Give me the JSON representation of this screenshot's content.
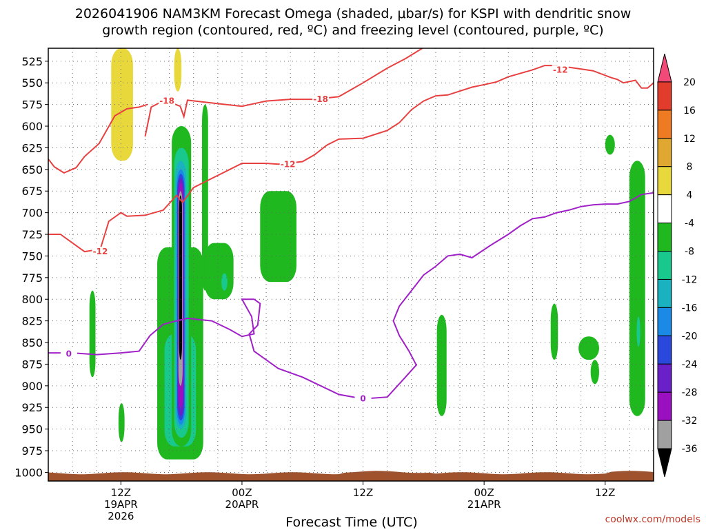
{
  "chart_data": {
    "type": "heatmap",
    "title_line1": "2026041906 NAM3KM Forecast Omega (shaded, μbar/s) for KSPI with dendritic snow",
    "title_line2": "growth region (contoured, red, ºC) and freezing level (contoured, purple, ºC)",
    "xlabel": "Forecast Time (UTC)",
    "credit": "coolwx.com/models",
    "y_axis": {
      "unit": "hPa",
      "reversed": true,
      "range": [
        510,
        1010
      ],
      "ticks": [
        525,
        550,
        575,
        600,
        625,
        650,
        675,
        700,
        725,
        750,
        775,
        800,
        825,
        850,
        875,
        900,
        925,
        950,
        975,
        1000
      ]
    },
    "x_axis": {
      "range_hours": [
        6,
        56
      ],
      "ticks": [
        {
          "hour": 12,
          "lines": [
            "12Z",
            "19APR",
            "2026"
          ]
        },
        {
          "hour": 22,
          "lines": [
            "00Z",
            "20APR"
          ]
        },
        {
          "hour": 32,
          "lines": [
            "12Z"
          ]
        },
        {
          "hour": 42,
          "lines": [
            "00Z",
            "21APR"
          ]
        },
        {
          "hour": 52,
          "lines": [
            "12Z"
          ]
        }
      ]
    },
    "grid": true,
    "colorbar": {
      "levels": [
        20,
        16,
        12,
        8,
        4,
        -4,
        -8,
        -12,
        -16,
        -20,
        -24,
        -28,
        -32,
        -36
      ],
      "colors": [
        "#f24a78",
        "#e23c2c",
        "#ee7a22",
        "#e0a830",
        "#e8d83c",
        "#ffffff",
        "#1fb81f",
        "#19c88c",
        "#1ab2c0",
        "#1b8ae6",
        "#2a48dc",
        "#6a20c8",
        "#9a10c0",
        "#a0a0a0",
        "#000000"
      ],
      "position": "right"
    },
    "omega_regions": [
      {
        "x0": 6.0,
        "x1": 6.6,
        "p0": 510,
        "p1": 800,
        "value": 4
      },
      {
        "x0": 7.6,
        "x1": 8.4,
        "p0": 510,
        "p1": 575,
        "value": 4
      },
      {
        "x0": 9.5,
        "x1": 13.8,
        "p0": 510,
        "p1": 740,
        "value": 4
      },
      {
        "x0": 11.2,
        "x1": 13.0,
        "p0": 510,
        "p1": 640,
        "value": 8
      },
      {
        "x0": 16.0,
        "x1": 17.2,
        "p0": 510,
        "p1": 640,
        "value": 4
      },
      {
        "x0": 16.4,
        "x1": 17.0,
        "p0": 510,
        "p1": 560,
        "value": 8
      },
      {
        "x0": 23.0,
        "x1": 24.4,
        "p0": 510,
        "p1": 525,
        "value": 4
      },
      {
        "x0": 7.3,
        "x1": 7.9,
        "p0": 740,
        "p1": 775,
        "value": 4
      },
      {
        "x0": 21.6,
        "x1": 24.4,
        "p0": 830,
        "p1": 915,
        "value": 4
      },
      {
        "x0": 9.4,
        "x1": 9.9,
        "p0": 790,
        "p1": 890,
        "value": -4
      },
      {
        "x0": 11.8,
        "x1": 12.3,
        "p0": 920,
        "p1": 965,
        "value": -4
      },
      {
        "x0": 15.0,
        "x1": 18.8,
        "p0": 740,
        "p1": 985,
        "value": -4
      },
      {
        "x0": 15.6,
        "x1": 18.2,
        "p0": 840,
        "p1": 970,
        "value": -8
      },
      {
        "x0": 16.2,
        "x1": 17.6,
        "p0": 860,
        "p1": 950,
        "value": -12
      },
      {
        "x0": 16.5,
        "x1": 17.2,
        "p0": 870,
        "p1": 935,
        "value": -16
      },
      {
        "x0": 16.2,
        "x1": 17.8,
        "p0": 600,
        "p1": 970,
        "value": -4
      },
      {
        "x0": 16.4,
        "x1": 17.6,
        "p0": 625,
        "p1": 960,
        "value": -8
      },
      {
        "x0": 16.5,
        "x1": 17.4,
        "p0": 640,
        "p1": 950,
        "value": -12
      },
      {
        "x0": 16.6,
        "x1": 17.3,
        "p0": 650,
        "p1": 945,
        "value": -16
      },
      {
        "x0": 16.65,
        "x1": 17.25,
        "p0": 655,
        "p1": 940,
        "value": -20
      },
      {
        "x0": 16.7,
        "x1": 17.2,
        "p0": 660,
        "p1": 935,
        "value": -24
      },
      {
        "x0": 16.72,
        "x1": 17.15,
        "p0": 665,
        "p1": 925,
        "value": -28
      },
      {
        "x0": 16.75,
        "x1": 17.1,
        "p0": 675,
        "p1": 900,
        "value": -32
      },
      {
        "x0": 16.8,
        "x1": 17.05,
        "p0": 680,
        "p1": 870,
        "value": -36
      },
      {
        "x0": 18.7,
        "x1": 19.2,
        "p0": 575,
        "p1": 790,
        "value": -4
      },
      {
        "x0": 18.9,
        "x1": 21.3,
        "p0": 735,
        "p1": 800,
        "value": -4
      },
      {
        "x0": 20.3,
        "x1": 20.8,
        "p0": 770,
        "p1": 790,
        "value": -8
      },
      {
        "x0": 23.5,
        "x1": 26.5,
        "p0": 675,
        "p1": 780,
        "value": -4
      },
      {
        "x0": 38.1,
        "x1": 38.9,
        "p0": 818,
        "p1": 935,
        "value": -4
      },
      {
        "x0": 47.5,
        "x1": 48.1,
        "p0": 805,
        "p1": 870,
        "value": -4
      },
      {
        "x0": 49.8,
        "x1": 51.5,
        "p0": 843,
        "p1": 870,
        "value": -4
      },
      {
        "x0": 50.8,
        "x1": 51.5,
        "p0": 870,
        "p1": 898,
        "value": -4
      },
      {
        "x0": 52.0,
        "x1": 52.8,
        "p0": 610,
        "p1": 633,
        "value": -4
      },
      {
        "x0": 54.0,
        "x1": 55.3,
        "p0": 640,
        "p1": 935,
        "value": -4
      },
      {
        "x0": 54.6,
        "x1": 54.9,
        "p0": 820,
        "p1": 855,
        "value": -8
      }
    ],
    "series": [
      {
        "color": "#e84040",
        "label": "-18",
        "labels_at": [
          {
            "x": 15.8,
            "p": 571
          },
          {
            "x": 28.5,
            "p": 569
          }
        ],
        "points": [
          [
            14.0,
            612
          ],
          [
            14.5,
            578
          ],
          [
            15.6,
            570
          ],
          [
            16.9,
            577
          ],
          [
            17.2,
            589
          ],
          [
            17.5,
            570
          ],
          [
            20.0,
            574
          ],
          [
            22.0,
            577
          ],
          [
            24.0,
            571
          ],
          [
            26.0,
            569
          ],
          [
            28.0,
            569
          ],
          [
            30.0,
            566
          ],
          [
            32.0,
            550
          ],
          [
            34.0,
            533
          ],
          [
            35.5,
            522
          ],
          [
            36.9,
            510
          ]
        ]
      },
      {
        "color": "#e84040",
        "label": "-12",
        "labels_at": [
          {
            "x": 10.3,
            "p": 745
          },
          {
            "x": 25.8,
            "p": 644
          },
          {
            "x": 48.3,
            "p": 535
          }
        ],
        "points": [
          [
            6.0,
            638
          ],
          [
            6.5,
            647
          ],
          [
            7.3,
            654
          ],
          [
            8.3,
            648
          ],
          [
            9.0,
            635
          ],
          [
            10.2,
            620
          ],
          [
            11.5,
            588
          ],
          [
            12.5,
            580
          ],
          [
            13.5,
            578
          ],
          [
            14.2,
            575
          ]
        ]
      },
      {
        "color": "#e84040",
        "label": "",
        "points": [
          [
            6.0,
            725
          ],
          [
            7.0,
            725
          ],
          [
            8.0,
            735
          ],
          [
            9.0,
            745
          ],
          [
            10.3,
            742
          ],
          [
            11.0,
            710
          ],
          [
            12.0,
            700
          ],
          [
            12.5,
            704
          ],
          [
            14.0,
            703
          ],
          [
            15.5,
            697
          ],
          [
            16.6,
            680
          ],
          [
            17.1,
            688
          ],
          [
            18.0,
            671
          ],
          [
            19.0,
            664
          ],
          [
            20.0,
            657
          ],
          [
            21.0,
            650
          ],
          [
            22.0,
            643
          ],
          [
            24.0,
            643
          ],
          [
            25.0,
            644
          ],
          [
            27.0,
            641
          ],
          [
            28.0,
            633
          ],
          [
            29.0,
            622
          ],
          [
            30.0,
            615
          ],
          [
            32.0,
            614
          ],
          [
            34.0,
            605
          ],
          [
            35.0,
            596
          ],
          [
            36.0,
            581
          ],
          [
            37.0,
            571
          ],
          [
            38.0,
            565
          ],
          [
            39.0,
            564
          ],
          [
            41.0,
            555
          ],
          [
            42.0,
            552
          ],
          [
            43.0,
            549
          ],
          [
            44.0,
            543
          ],
          [
            45.0,
            539
          ],
          [
            46.0,
            535
          ],
          [
            47.0,
            530
          ],
          [
            48.0,
            530
          ],
          [
            49.5,
            533
          ],
          [
            51.0,
            536
          ],
          [
            52.5,
            544
          ],
          [
            53.0,
            546
          ],
          [
            53.5,
            550
          ],
          [
            54.5,
            547
          ],
          [
            55.0,
            556
          ],
          [
            55.5,
            556
          ],
          [
            56.0,
            550
          ]
        ]
      },
      {
        "color": "#a020c8",
        "label": "0",
        "labels_at": [
          {
            "x": 7.7,
            "p": 863
          },
          {
            "x": 32.0,
            "p": 915
          }
        ],
        "points": [
          [
            6.0,
            862
          ],
          [
            8.0,
            862
          ],
          [
            10.0,
            864
          ],
          [
            12.0,
            862
          ],
          [
            13.5,
            860
          ],
          [
            14.4,
            842
          ],
          [
            15.5,
            829
          ],
          [
            16.6,
            825
          ],
          [
            17.5,
            822
          ],
          [
            19.5,
            825
          ],
          [
            21.0,
            835
          ],
          [
            22.0,
            843
          ],
          [
            23.0,
            840
          ],
          [
            22.8,
            820
          ],
          [
            22.0,
            800
          ],
          [
            23.0,
            800
          ],
          [
            23.5,
            805
          ],
          [
            23.3,
            830
          ],
          [
            22.6,
            840
          ],
          [
            23.0,
            860
          ],
          [
            24.0,
            870
          ],
          [
            25.0,
            880
          ],
          [
            27.0,
            890
          ],
          [
            30.0,
            910
          ],
          [
            32.0,
            915
          ],
          [
            34.0,
            913
          ],
          [
            35.5,
            890
          ],
          [
            36.4,
            876
          ],
          [
            35.8,
            860
          ],
          [
            35.0,
            842
          ],
          [
            34.5,
            825
          ],
          [
            35.0,
            808
          ],
          [
            36.0,
            790
          ],
          [
            37.0,
            772
          ],
          [
            38.0,
            762
          ],
          [
            39.0,
            750
          ],
          [
            40.0,
            748
          ],
          [
            41.0,
            752
          ],
          [
            42.5,
            738
          ],
          [
            44.0,
            725
          ],
          [
            45.0,
            715
          ],
          [
            46.0,
            707
          ],
          [
            47.0,
            705
          ],
          [
            48.0,
            700
          ],
          [
            49.0,
            697
          ],
          [
            50.0,
            693
          ],
          [
            51.0,
            691
          ],
          [
            52.0,
            690
          ],
          [
            53.0,
            690
          ],
          [
            54.0,
            687
          ],
          [
            55.0,
            679
          ],
          [
            56.0,
            677
          ]
        ]
      }
    ]
  }
}
